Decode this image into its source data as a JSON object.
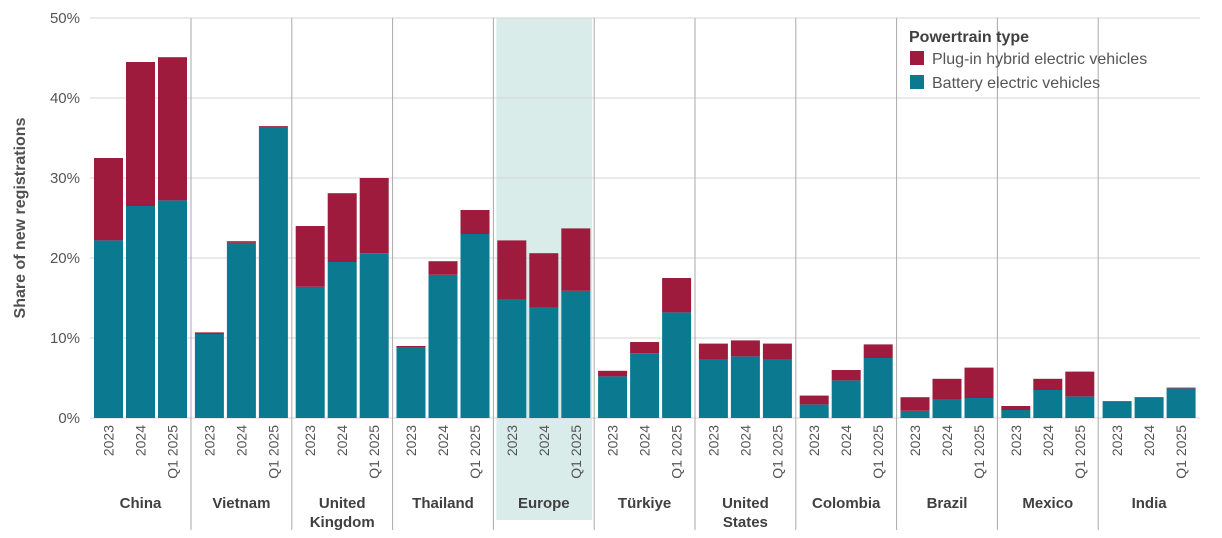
{
  "chart_data": {
    "type": "bar",
    "stacked": true,
    "ylabel": "Share of new registrations",
    "ylim": [
      0,
      50
    ],
    "yticks": [
      "0%",
      "10%",
      "20%",
      "30%",
      "40%",
      "50%"
    ],
    "grid": true,
    "legend": {
      "title": "Powertrain type",
      "placement": "top-right",
      "entries": [
        "Plug-in hybrid electric vehicles",
        "Battery electric vehicles"
      ]
    },
    "highlighted_group": "Europe",
    "periods": [
      "2023",
      "2024",
      "Q1 2025"
    ],
    "colors": {
      "bev": "#0b7a91",
      "phev": "#9e1b3e",
      "highlight": "#d9ecea",
      "grid": "#d4d4d4",
      "divider": "#aaaaaa"
    },
    "groups": [
      {
        "name": "China",
        "bev": [
          22.2,
          26.5,
          27.2
        ],
        "total": [
          32.5,
          44.5,
          45.1
        ]
      },
      {
        "name": "Vietnam",
        "bev": [
          10.5,
          21.9,
          36.4
        ],
        "total": [
          10.7,
          22.1,
          36.5
        ]
      },
      {
        "name": "United Kingdom",
        "bev": [
          16.4,
          19.5,
          20.6
        ],
        "total": [
          24.0,
          28.1,
          30.0
        ]
      },
      {
        "name": "Thailand",
        "bev": [
          8.8,
          17.9,
          23.0
        ],
        "total": [
          9.0,
          19.6,
          26.0
        ]
      },
      {
        "name": "Europe",
        "bev": [
          14.8,
          13.8,
          15.9
        ],
        "total": [
          22.2,
          20.6,
          23.7
        ]
      },
      {
        "name": "Türkiye",
        "bev": [
          5.2,
          8.1,
          13.2
        ],
        "total": [
          5.9,
          9.5,
          17.5
        ]
      },
      {
        "name": "United States",
        "bev": [
          7.3,
          7.7,
          7.3
        ],
        "total": [
          9.3,
          9.7,
          9.3
        ]
      },
      {
        "name": "Colombia",
        "bev": [
          1.7,
          4.7,
          7.5
        ],
        "total": [
          2.8,
          6.0,
          9.2
        ]
      },
      {
        "name": "Brazil",
        "bev": [
          0.9,
          2.3,
          2.5
        ],
        "total": [
          2.6,
          4.9,
          6.3
        ]
      },
      {
        "name": "Mexico",
        "bev": [
          1.0,
          3.5,
          2.7
        ],
        "total": [
          1.5,
          4.9,
          5.8
        ]
      },
      {
        "name": "India",
        "bev": [
          2.0,
          2.5,
          3.7
        ],
        "total": [
          2.1,
          2.6,
          3.8
        ]
      }
    ]
  }
}
